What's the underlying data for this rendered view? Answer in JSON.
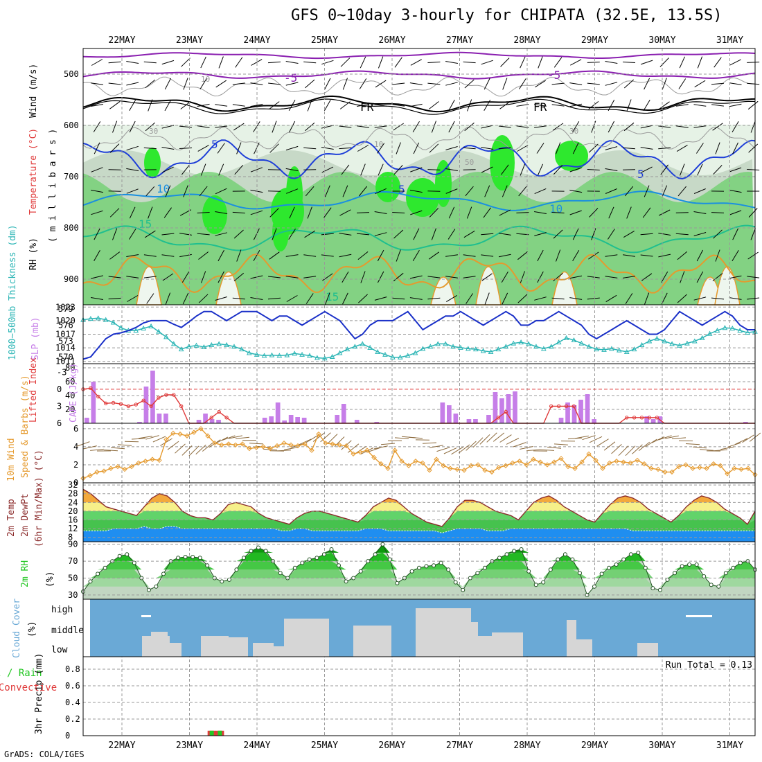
{
  "title": "GFS 0~10day 3-hourly for CHIPATA (32.5E, 13.5S)",
  "credit": "GrADS: COLA/IGES",
  "dates": [
    "22MAY",
    "23MAY",
    "24MAY",
    "25MAY",
    "26MAY",
    "27MAY",
    "28MAY",
    "29MAY",
    "30MAY",
    "31MAY"
  ],
  "colors": {
    "rh_light": "#e6f2e6",
    "rh_mid": "#c7d9c7",
    "rh_green": "#6ccf6c",
    "rh_bright": "#2ee82e",
    "temp_5": "#1f3fd8",
    "temp_10": "#1a8fe0",
    "temp_15": "#1fbf8f",
    "temp_warm": "#e59a2e",
    "temp_neg5": "#8a1fb0",
    "freezing": "#000000",
    "slp_line": "#1a30c8",
    "thickness_line": "#2bb5b5",
    "cape_bar": "#c67ee8",
    "lifted_index": "#e03a3a",
    "wind_speed": "#e59a2e",
    "barbs": "#8c6a3c",
    "temp_fill_warm": "#f3a93c",
    "temp_fill_yellow": "#f6f08a",
    "temp_fill_green": "#62d36a",
    "dewpt_fill": "#1f8ef0",
    "rh2m_fill": "#22c722",
    "cloud_bg": "#6aa9d6",
    "cloud_block": "#d6d6d6",
    "precip_total": "#22c722",
    "precip_conv": "#e03a3a"
  },
  "chart_data": [
    {
      "type": "heatmap",
      "panel": "upper-air",
      "ylabel_rh": "RH (%)",
      "ylabel_temp": "Temperature (°C)",
      "ylabel_wind": "Wind (m/s)",
      "ylabel_pressure": "( m i l l i b a r s )",
      "y_ticks": [
        "500",
        "600",
        "700",
        "800",
        "900"
      ],
      "ylim": [
        450,
        950
      ],
      "contour_labels": [
        "-5",
        "-5",
        "FR",
        "FR",
        "5",
        "5",
        "5",
        "10",
        "10",
        "15",
        "15",
        "10",
        "10",
        "30",
        "50",
        "70",
        "10",
        "30"
      ]
    },
    {
      "type": "line",
      "panel": "slp-thickness",
      "ylabel_thickness": "1000~500mb Thickness (dm)",
      "ylabel_slp": "SLP (mb)",
      "thickness_ticks": [
        "579",
        "576",
        "573",
        "570"
      ],
      "slp_ticks": [
        "1023",
        "1020",
        "1017",
        "1014",
        "1011"
      ],
      "series": [
        {
          "name": "SLP (mb)",
          "values": [
            1011.5,
            1012,
            1014,
            1016,
            1017,
            1017.3,
            1017.8,
            1018.5,
            1019.5,
            1020,
            1020,
            1020,
            1019.2,
            1018.5,
            1019.7,
            1021,
            1022,
            1022,
            1021,
            1020,
            1021,
            1022,
            1022,
            1022,
            1021,
            1020,
            1021,
            1021,
            1020,
            1019,
            1020,
            1021,
            1022,
            1021,
            1020,
            1018,
            1016,
            1017,
            1019,
            1020,
            1020,
            1020,
            1021,
            1022,
            1020,
            1018,
            1019,
            1020,
            1021,
            1021,
            1022,
            1021,
            1020,
            1019,
            1020,
            1021,
            1022,
            1021,
            1019,
            1019,
            1020,
            1020,
            1021,
            1022,
            1021,
            1020,
            1019,
            1017,
            1016,
            1017,
            1018,
            1019,
            1020,
            1019,
            1018,
            1017,
            1017,
            1018,
            1020,
            1022,
            1021,
            1020,
            1019,
            1020,
            1021,
            1022,
            1021,
            1019,
            1018,
            1018
          ]
        },
        {
          "name": "Thickness (dm)",
          "values": [
            577,
            577.2,
            577.3,
            577,
            576.5,
            575.5,
            575,
            575,
            575.4,
            575.8,
            574.8,
            573.8,
            572.5,
            571.5,
            572,
            572.2,
            571.9,
            572.3,
            572.5,
            572.3,
            572,
            571.5,
            570.8,
            570.5,
            570.3,
            570.4,
            570.3,
            570.4,
            570.7,
            570.5,
            570.3,
            569.9,
            569.8,
            570.1,
            570.8,
            571.5,
            572,
            572.5,
            571.8,
            571,
            570.5,
            570,
            570,
            570.3,
            570.8,
            571.6,
            572,
            572.5,
            572.5,
            572,
            571.8,
            571.6,
            571.5,
            571.2,
            571,
            571.5,
            572,
            572.6,
            572.8,
            572.5,
            572,
            571.6,
            572,
            572.8,
            573.6,
            573.2,
            572.6,
            572,
            571.5,
            571.4,
            571.6,
            571.3,
            571,
            571.5,
            572.3,
            573,
            573.5,
            573,
            572.5,
            572.2,
            572.6,
            573,
            573.6,
            574.4,
            575,
            575.5,
            575.4,
            575,
            574.6,
            574.8
          ]
        }
      ]
    },
    {
      "type": "bar",
      "panel": "cape-li",
      "ylabel_li": "Lifted Index",
      "ylabel_cape": "CAPE (J/kg)",
      "li_ticks": [
        "-3",
        "0",
        "3",
        "6"
      ],
      "cape_ticks": [
        "80",
        "60",
        "40",
        "20"
      ],
      "series": [
        {
          "name": "CAPE (J/kg)",
          "values": [
            8,
            60,
            0,
            0,
            0,
            0,
            0,
            0,
            2,
            53,
            76,
            14,
            14,
            0,
            0,
            0,
            0,
            5,
            14,
            6,
            5,
            0,
            0,
            0,
            0,
            0,
            0,
            8,
            10,
            30,
            4,
            12,
            9,
            8,
            0,
            0,
            0,
            0,
            12,
            28,
            0,
            5,
            0,
            0,
            2,
            0,
            0,
            0,
            0,
            0,
            0,
            0,
            0,
            0,
            30,
            26,
            14,
            0,
            6,
            6,
            0,
            12,
            45,
            36,
            42,
            46,
            0,
            0,
            0,
            0,
            0,
            0,
            8,
            30,
            26,
            34,
            42,
            6,
            0,
            0,
            0,
            0,
            0,
            0,
            0,
            10,
            6,
            10,
            0,
            0,
            0,
            0,
            0,
            0,
            0,
            0,
            0,
            0,
            0,
            0,
            2,
            0
          ]
        },
        {
          "name": "Lifted Index",
          "values": [
            0,
            -0.2,
            1.3,
            2.5,
            2.4,
            2.6,
            3,
            2.7,
            2,
            3,
            1.5,
            1,
            1,
            3,
            6,
            6,
            6,
            5,
            4,
            5,
            6,
            6,
            6,
            6,
            6,
            6,
            6,
            6,
            6,
            6,
            6,
            6,
            6,
            6,
            6,
            6,
            6,
            6,
            6,
            6,
            6,
            6,
            6,
            6,
            6,
            6,
            6,
            6,
            6,
            6,
            6,
            6,
            6,
            6,
            6,
            5,
            4,
            6,
            6,
            6,
            6,
            6,
            3,
            3,
            3,
            3,
            6,
            6,
            6,
            6,
            6,
            6,
            5,
            5,
            5,
            5,
            5,
            6,
            6,
            6,
            6,
            6,
            6,
            6,
            6,
            6,
            6,
            6,
            6,
            6
          ]
        }
      ]
    },
    {
      "type": "line",
      "panel": "wind",
      "ylabel": "10m Wind Speed & Barbs (m/s)",
      "y_ticks": [
        "6",
        "4",
        "2",
        "0"
      ],
      "ylim": [
        0,
        6.6
      ],
      "series": [
        {
          "name": "10m Wind Speed (m/s)",
          "values": [
            0.5,
            0.8,
            1.2,
            1.3,
            1.6,
            1.8,
            1.5,
            1.8,
            2.2,
            2.4,
            2.6,
            2.5,
            4.8,
            5.5,
            5.4,
            5.2,
            5.6,
            6,
            5.2,
            4.4,
            4.2,
            4.3,
            4.2,
            4.3,
            3.8,
            3.9,
            4,
            3.8,
            4.1,
            4.4,
            4.2,
            4.1,
            4.3,
            3.6,
            5.4,
            4.4,
            4.3,
            4.2,
            4.1,
            3.2,
            3.4,
            3.6,
            2.8,
            2.1,
            1.6,
            3.6,
            2.4,
            1.9,
            2.4,
            2.2,
            1.4,
            2.6,
            1.9,
            1.6,
            1.5,
            1.4,
            1.9,
            2,
            1.4,
            1.2,
            1.7,
            1.9,
            2.2,
            2.4,
            2,
            2.6,
            2.3,
            2,
            2.3,
            2.7,
            1.8,
            1.6,
            2.3,
            3.2,
            2.5,
            1.6,
            2.2,
            2.4,
            2.3,
            2.2,
            2.5,
            2.1,
            1.6,
            1.5,
            1.2,
            1.2,
            1.8,
            2,
            1.6,
            1.7,
            1.6,
            2.1,
            1.9,
            1,
            1.6,
            1.5,
            1.6,
            0.9
          ]
        }
      ]
    },
    {
      "type": "area",
      "panel": "temp",
      "ylabel": "2m Temp 2m DewPt (6hr Min/Max) (°C)",
      "y_ticks": [
        "32",
        "28",
        "24",
        "20",
        "16",
        "12",
        "8"
      ],
      "ylim": [
        6,
        33
      ],
      "series": [
        {
          "name": "2m Temp (°C)",
          "values": [
            30,
            28,
            25,
            22,
            21,
            20,
            19,
            18,
            22,
            26,
            28,
            27,
            24,
            20,
            18,
            17,
            17,
            16,
            19,
            23,
            24,
            23,
            22,
            19,
            17,
            16,
            15,
            14,
            17,
            19,
            20,
            20,
            19,
            18,
            17,
            16,
            15,
            18,
            22,
            24,
            26,
            25,
            22,
            19,
            17,
            15,
            14,
            13,
            17,
            22,
            25,
            25,
            24,
            22,
            20,
            19,
            18,
            16,
            20,
            24,
            26,
            27,
            25,
            22,
            20,
            18,
            16,
            15,
            19,
            23,
            26,
            27,
            26,
            24,
            21,
            19,
            17,
            15,
            18,
            22,
            25,
            27,
            26,
            24,
            21,
            19,
            17,
            14,
            20
          ]
        },
        {
          "name": "2m DewPt (°C)",
          "values": [
            11,
            11,
            11,
            11,
            12,
            12,
            12,
            12,
            13,
            12,
            12,
            13,
            13,
            12,
            12,
            12,
            12,
            12,
            12,
            12,
            12,
            12,
            12,
            12,
            12,
            12,
            11,
            11,
            12,
            12,
            11,
            11,
            11,
            11,
            11,
            11,
            11,
            12,
            12,
            12,
            11,
            11,
            11,
            11,
            11,
            11,
            11,
            10,
            11,
            12,
            12,
            12,
            12,
            11,
            11,
            11,
            12,
            12,
            12,
            12,
            12,
            12,
            12,
            12,
            12,
            12,
            12,
            12,
            12,
            12,
            12,
            12,
            11,
            11,
            11,
            11,
            11,
            11,
            11,
            11,
            11,
            11,
            11,
            11,
            11,
            11,
            11,
            11,
            11
          ]
        }
      ]
    },
    {
      "type": "area",
      "panel": "rh",
      "ylabel": "2m RH (%)",
      "y_ticks": [
        "90",
        "70",
        "50",
        "30"
      ],
      "ylim": [
        25,
        93
      ],
      "series": [
        {
          "name": "2m RH (%)",
          "values": [
            34,
            46,
            55,
            62,
            70,
            76,
            78,
            68,
            50,
            36,
            40,
            55,
            70,
            74,
            75,
            75,
            74,
            65,
            50,
            46,
            48,
            60,
            74,
            82,
            86,
            82,
            70,
            56,
            50,
            62,
            68,
            72,
            74,
            78,
            84,
            65,
            46,
            50,
            58,
            70,
            78,
            90,
            72,
            44,
            50,
            58,
            62,
            64,
            65,
            68,
            60,
            45,
            36,
            50,
            56,
            62,
            70,
            74,
            78,
            82,
            84,
            58,
            42,
            45,
            60,
            72,
            78,
            72,
            56,
            30,
            40,
            55,
            62,
            66,
            72,
            78,
            80,
            62,
            38,
            36,
            48,
            56,
            64,
            66,
            66,
            52,
            42,
            40,
            56,
            62,
            68,
            70,
            60
          ]
        }
      ]
    },
    {
      "type": "bar",
      "panel": "cloud",
      "ylabel": "Cloud Cover (%)",
      "levels": [
        "high",
        "middle",
        "low"
      ]
    },
    {
      "type": "bar",
      "panel": "precip",
      "ylabel": "3hr Precip (mm)",
      "legend": [
        "Total / Rain",
        "Convective"
      ],
      "run_total": "Run Total = 0.13",
      "y_ticks": [
        "0.8",
        "0.6",
        "0.4",
        "0.2",
        "0"
      ],
      "ylim": [
        0,
        0.95
      ],
      "series": [
        {
          "name": "Total / Rain",
          "values": [
            0.06,
            0.06
          ]
        },
        {
          "name": "Convective",
          "values": [
            0.06,
            0.06
          ]
        }
      ],
      "x_positions_days": [
        2.33,
        2.45
      ]
    }
  ]
}
